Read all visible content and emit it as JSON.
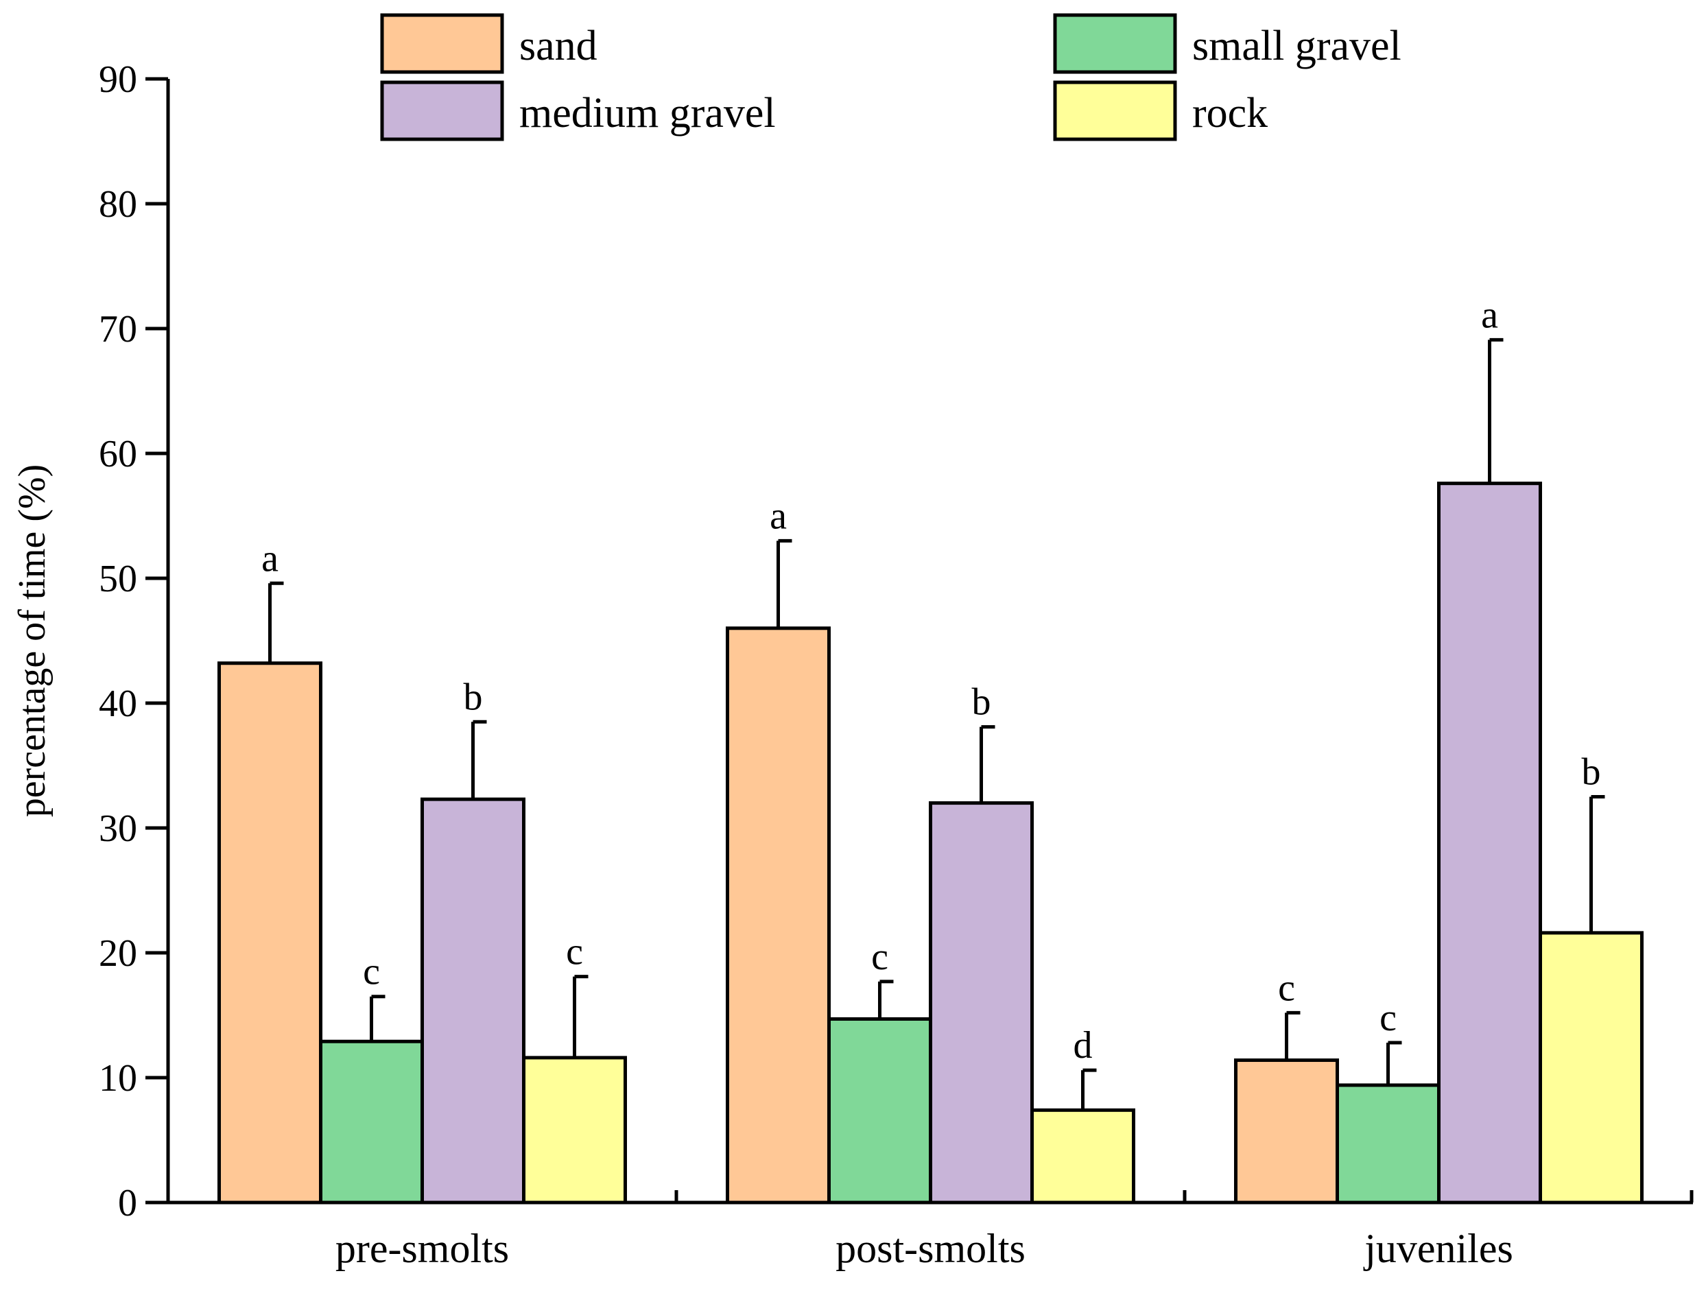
{
  "chart_data": {
    "type": "bar",
    "title": "",
    "xlabel": "",
    "ylabel": "percentage of time (%)",
    "ylim": [
      0,
      90
    ],
    "yticks": [
      "0",
      "10",
      "20",
      "30",
      "40",
      "50",
      "60",
      "70",
      "80",
      "90"
    ],
    "categories": [
      "pre-smolts",
      "post-smolts",
      "juveniles"
    ],
    "series": [
      {
        "name": "sand",
        "color": "#FFC896",
        "values": [
          43.2,
          46.0,
          11.4
        ],
        "errors": [
          6.4,
          7.0,
          3.8
        ],
        "letters": [
          "a",
          "a",
          "c"
        ]
      },
      {
        "name": "small gravel",
        "color": "#80D898",
        "values": [
          12.9,
          14.7,
          9.4
        ],
        "errors": [
          3.6,
          3.0,
          3.4
        ],
        "letters": [
          "c",
          "c",
          "c"
        ]
      },
      {
        "name": "medium gravel",
        "color": "#C8B4D8",
        "values": [
          32.3,
          32.0,
          57.6
        ],
        "errors": [
          6.2,
          6.1,
          11.5
        ],
        "letters": [
          "b",
          "b",
          "a"
        ]
      },
      {
        "name": "rock",
        "color": "#FFFF99",
        "values": [
          11.6,
          7.4,
          21.6
        ],
        "errors": [
          6.5,
          3.2,
          10.9
        ],
        "letters": [
          "c",
          "d",
          "b"
        ]
      }
    ],
    "legend": {
      "position": "top",
      "columns": 2,
      "order": [
        "sand",
        "small gravel",
        "medium gravel",
        "rock"
      ]
    },
    "grid": false
  }
}
